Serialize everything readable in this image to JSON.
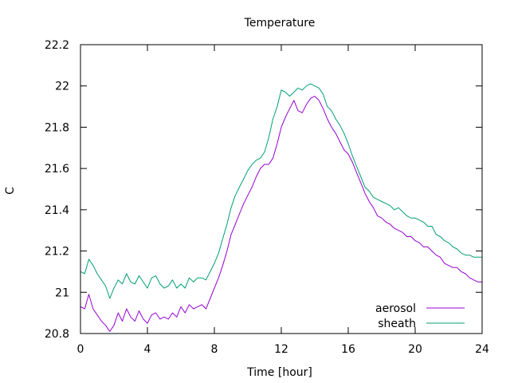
{
  "chart_data": {
    "type": "line",
    "title": "Temperature",
    "xlabel": "Time [hour]",
    "ylabel": "C",
    "xlim": [
      0,
      24
    ],
    "ylim": [
      20.8,
      22.2
    ],
    "xticks": [
      0,
      4,
      8,
      12,
      16,
      20,
      24
    ],
    "yticks": [
      20.8,
      21,
      21.2,
      21.4,
      21.6,
      21.8,
      22,
      22.2
    ],
    "grid": false,
    "legend_position": "bottom-right",
    "series": [
      {
        "name": "aerosol",
        "color": "#9400d3",
        "x": [
          0,
          0.25,
          0.5,
          0.75,
          1,
          1.25,
          1.5,
          1.75,
          2,
          2.25,
          2.5,
          2.75,
          3,
          3.25,
          3.5,
          3.75,
          4,
          4.25,
          4.5,
          4.75,
          5,
          5.25,
          5.5,
          5.75,
          6,
          6.25,
          6.5,
          6.75,
          7,
          7.25,
          7.5,
          7.75,
          8,
          8.25,
          8.5,
          8.75,
          9,
          9.25,
          9.5,
          9.75,
          10,
          10.25,
          10.5,
          10.75,
          11,
          11.25,
          11.5,
          11.75,
          12,
          12.25,
          12.5,
          12.75,
          13,
          13.25,
          13.5,
          13.75,
          14,
          14.25,
          14.5,
          14.75,
          15,
          15.25,
          15.5,
          15.75,
          16,
          16.25,
          16.5,
          16.75,
          17,
          17.25,
          17.5,
          17.75,
          18,
          18.25,
          18.5,
          18.75,
          19,
          19.25,
          19.5,
          19.75,
          20,
          20.25,
          20.5,
          20.75,
          21,
          21.25,
          21.5,
          21.75,
          22,
          22.25,
          22.5,
          22.75,
          23,
          23.25,
          23.5,
          23.75,
          24
        ],
        "y": [
          20.93,
          20.92,
          20.99,
          20.92,
          20.89,
          20.86,
          20.84,
          20.81,
          20.84,
          20.9,
          20.86,
          20.92,
          20.88,
          20.86,
          20.91,
          20.87,
          20.85,
          20.89,
          20.9,
          20.87,
          20.88,
          20.87,
          20.9,
          20.88,
          20.93,
          20.9,
          20.94,
          20.92,
          20.93,
          20.94,
          20.92,
          20.97,
          21.02,
          21.07,
          21.13,
          21.2,
          21.28,
          21.33,
          21.38,
          21.43,
          21.47,
          21.51,
          21.56,
          21.6,
          21.62,
          21.62,
          21.65,
          21.72,
          21.8,
          21.85,
          21.89,
          21.93,
          21.88,
          21.87,
          21.91,
          21.94,
          21.95,
          21.93,
          21.89,
          21.84,
          21.8,
          21.77,
          21.73,
          21.69,
          21.67,
          21.63,
          21.58,
          21.53,
          21.48,
          21.44,
          21.41,
          21.37,
          21.36,
          21.34,
          21.33,
          21.31,
          21.3,
          21.29,
          21.27,
          21.27,
          21.25,
          21.24,
          21.22,
          21.22,
          21.2,
          21.18,
          21.17,
          21.14,
          21.13,
          21.12,
          21.12,
          21.1,
          21.09,
          21.07,
          21.06,
          21.05,
          21.05
        ]
      },
      {
        "name": "sheath",
        "color": "#009e73",
        "x": [
          0,
          0.25,
          0.5,
          0.75,
          1,
          1.25,
          1.5,
          1.75,
          2,
          2.25,
          2.5,
          2.75,
          3,
          3.25,
          3.5,
          3.75,
          4,
          4.25,
          4.5,
          4.75,
          5,
          5.25,
          5.5,
          5.75,
          6,
          6.25,
          6.5,
          6.75,
          7,
          7.25,
          7.5,
          7.75,
          8,
          8.25,
          8.5,
          8.75,
          9,
          9.25,
          9.5,
          9.75,
          10,
          10.25,
          10.5,
          10.75,
          11,
          11.25,
          11.5,
          11.75,
          12,
          12.25,
          12.5,
          12.75,
          13,
          13.25,
          13.5,
          13.75,
          14,
          14.25,
          14.5,
          14.75,
          15,
          15.25,
          15.5,
          15.75,
          16,
          16.25,
          16.5,
          16.75,
          17,
          17.25,
          17.5,
          17.75,
          18,
          18.25,
          18.5,
          18.75,
          19,
          19.25,
          19.5,
          19.75,
          20,
          20.25,
          20.5,
          20.75,
          21,
          21.25,
          21.5,
          21.75,
          22,
          22.25,
          22.5,
          22.75,
          23,
          23.25,
          23.5,
          23.75,
          24
        ],
        "y": [
          21.1,
          21.09,
          21.16,
          21.13,
          21.09,
          21.06,
          21.03,
          20.97,
          21.02,
          21.06,
          21.04,
          21.09,
          21.05,
          21.04,
          21.08,
          21.05,
          21.02,
          21.07,
          21.08,
          21.04,
          21.02,
          21.03,
          21.06,
          21.02,
          21.04,
          21.02,
          21.07,
          21.05,
          21.07,
          21.07,
          21.06,
          21.1,
          21.14,
          21.19,
          21.26,
          21.33,
          21.41,
          21.47,
          21.51,
          21.55,
          21.59,
          21.62,
          21.64,
          21.65,
          21.68,
          21.75,
          21.84,
          21.9,
          21.98,
          21.97,
          21.95,
          21.97,
          21.99,
          21.98,
          22.0,
          22.01,
          22.0,
          21.99,
          21.96,
          21.9,
          21.88,
          21.84,
          21.81,
          21.77,
          21.72,
          21.66,
          21.61,
          21.56,
          21.51,
          21.49,
          21.46,
          21.45,
          21.44,
          21.43,
          21.42,
          21.4,
          21.41,
          21.39,
          21.37,
          21.36,
          21.36,
          21.35,
          21.34,
          21.32,
          21.32,
          21.28,
          21.27,
          21.25,
          21.24,
          21.22,
          21.21,
          21.19,
          21.18,
          21.18,
          21.17,
          21.17,
          21.17
        ]
      }
    ]
  }
}
